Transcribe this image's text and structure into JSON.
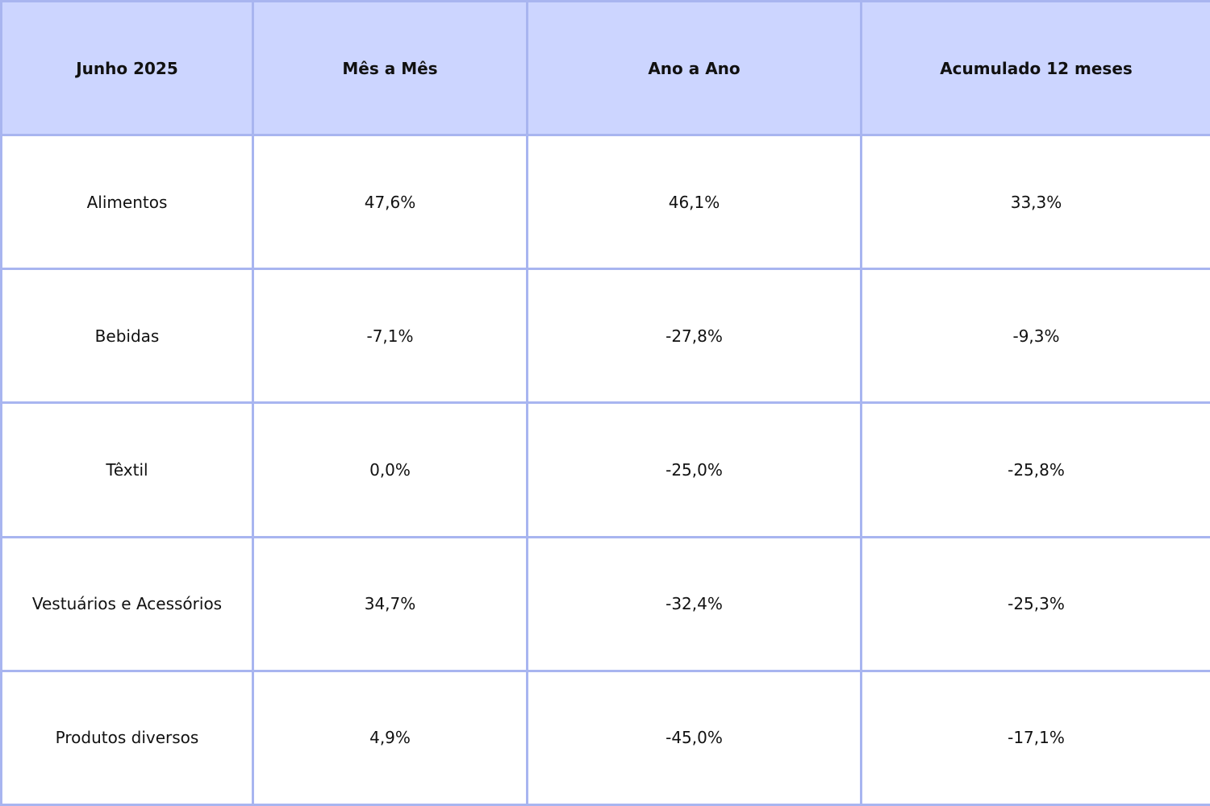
{
  "chart_data": {
    "type": "table",
    "columns": [
      "Junho 2025",
      "Mês a Mês",
      "Ano a Ano",
      "Acumulado 12 meses"
    ],
    "rows": [
      [
        "Alimentos",
        "47,6%",
        "46,1%",
        "33,3%"
      ],
      [
        "Bebidas",
        "-7,1%",
        "-27,8%",
        "-9,3%"
      ],
      [
        "Têxtil",
        "0,0%",
        "-25,0%",
        "-25,8%"
      ],
      [
        "Vestuários e Acessórios",
        "34,7%",
        "-32,4%",
        "-25,3%"
      ],
      [
        "Produtos diversos",
        "4,9%",
        "-45,0%",
        "-17,1%"
      ]
    ],
    "values": [
      [
        47.6,
        46.1,
        33.3
      ],
      [
        -7.1,
        -27.8,
        -9.3
      ],
      [
        0.0,
        -25.0,
        -25.8
      ],
      [
        34.7,
        -32.4,
        -25.3
      ],
      [
        4.9,
        -45.0,
        -17.1
      ]
    ],
    "colors": {
      "header_background": "#ccd5ff",
      "border": "#a8b5f0",
      "cell_background": "#ffffff",
      "text": "#111111"
    }
  }
}
